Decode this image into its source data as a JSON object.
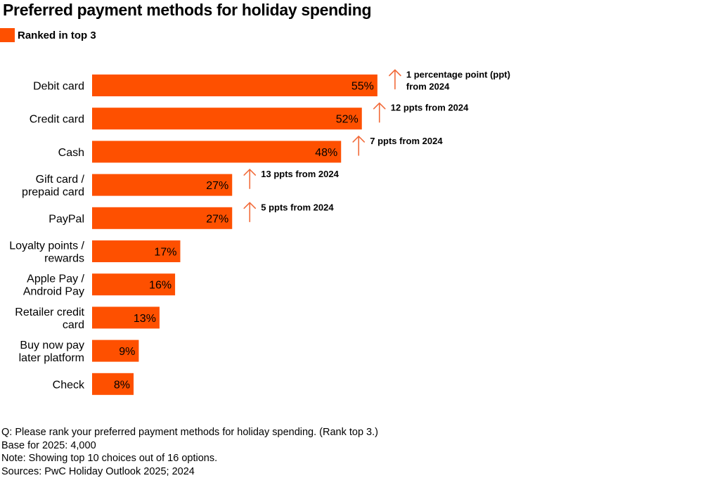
{
  "title": "Preferred payment methods for holiday spending",
  "legend": {
    "label": "Ranked in top 3",
    "color": "#fe5000"
  },
  "arrow_color": "#f26b3a",
  "arrow_icon": "up-arrow-icon",
  "chart_data": {
    "type": "bar",
    "orientation": "horizontal",
    "title": "Preferred payment methods for holiday spending",
    "categories": [
      [
        "Debit card"
      ],
      [
        "Credit card"
      ],
      [
        "Cash"
      ],
      [
        "Gift card /",
        "prepaid card"
      ],
      [
        "PayPal"
      ],
      [
        "Loyalty points /",
        "rewards"
      ],
      [
        "Apple Pay /",
        "Android Pay"
      ],
      [
        "Retailer credit",
        "card"
      ],
      [
        "Buy now pay",
        "later platform"
      ],
      [
        "Check"
      ]
    ],
    "series": [
      {
        "name": "Ranked in top 3",
        "values": [
          55,
          52,
          48,
          27,
          27,
          17,
          16,
          13,
          9,
          8
        ],
        "labels": [
          "55%",
          "52%",
          "48%",
          "27%",
          "27%",
          "17%",
          "16%",
          "13%",
          "9%",
          "8%"
        ]
      }
    ],
    "annotations": [
      [
        "1 percentage point (ppt)",
        "from 2024"
      ],
      [
        "12 ppts from 2024"
      ],
      [
        "7 ppts from 2024"
      ],
      [
        "13 ppts from 2024"
      ],
      [
        "5 ppts from 2024"
      ],
      null,
      null,
      null,
      null,
      null
    ],
    "xlim": [
      0,
      100
    ],
    "grid": false,
    "legend_position": "top-left"
  },
  "notes": [
    "Q: Please rank your preferred payment methods for holiday spending. (Rank top 3.)",
    "Base for 2025: 4,000",
    "Note: Showing top 10 choices out of 16 options.",
    "Sources: PwC Holiday Outlook 2025; 2024"
  ]
}
